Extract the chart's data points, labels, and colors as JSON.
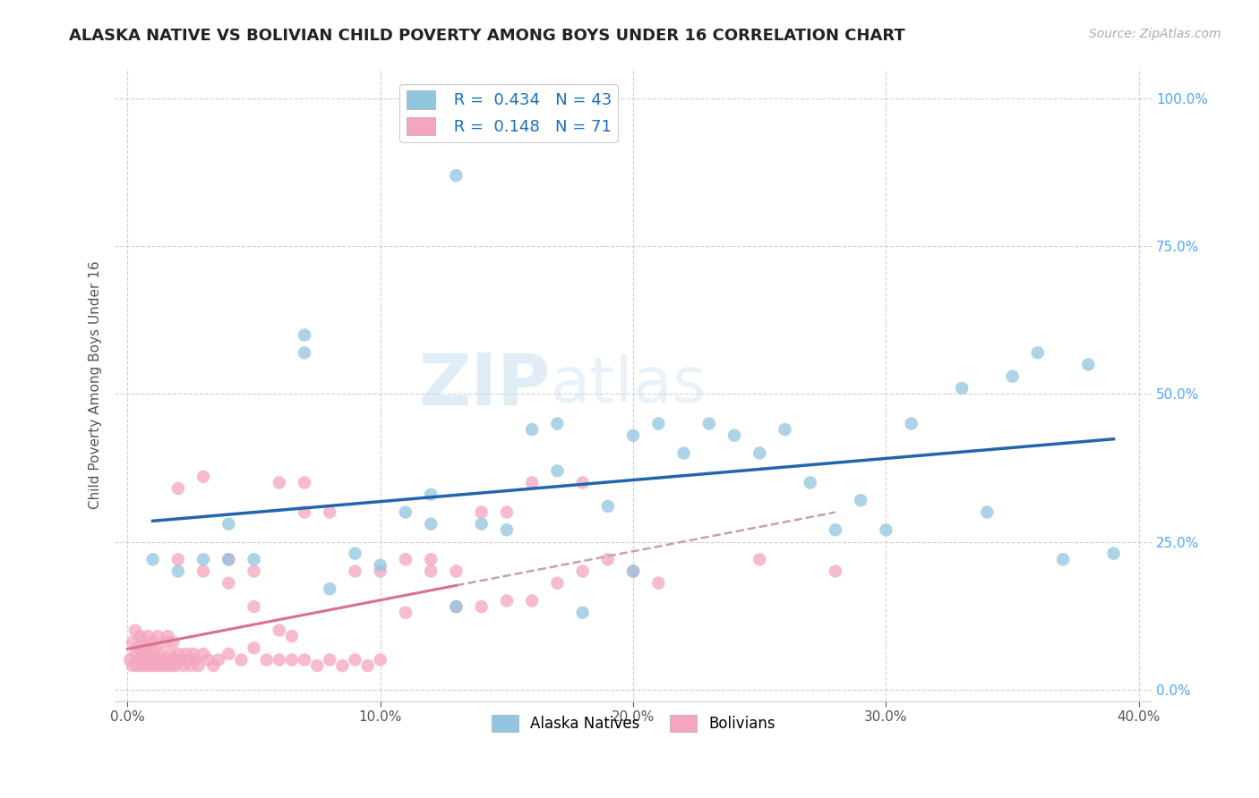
{
  "title": "ALASKA NATIVE VS BOLIVIAN CHILD POVERTY AMONG BOYS UNDER 16 CORRELATION CHART",
  "source": "Source: ZipAtlas.com",
  "ylabel": "Child Poverty Among Boys Under 16",
  "xlabel_ticks": [
    "0.0%",
    "10.0%",
    "20.0%",
    "30.0%",
    "40.0%"
  ],
  "xlabel_vals": [
    0.0,
    0.1,
    0.2,
    0.3,
    0.4
  ],
  "ylabel_ticks": [
    "0.0%",
    "25.0%",
    "50.0%",
    "75.0%",
    "100.0%"
  ],
  "ylabel_vals": [
    0.0,
    0.25,
    0.5,
    0.75,
    1.0
  ],
  "xlim": [
    -0.005,
    0.405
  ],
  "ylim": [
    -0.02,
    1.05
  ],
  "legend_blue_r": "0.434",
  "legend_blue_n": "43",
  "legend_pink_r": "0.148",
  "legend_pink_n": "71",
  "blue_color": "#92c5de",
  "pink_color": "#f4a6be",
  "blue_line_color": "#2166ac",
  "pink_line_color": "#d9728e",
  "watermark_zip": "ZIP",
  "watermark_atlas": "atlas",
  "background_color": "#ffffff",
  "grid_color": "#cccccc",
  "blue_scatter_x": [
    0.13,
    0.04,
    0.04,
    0.07,
    0.07,
    0.09,
    0.1,
    0.11,
    0.12,
    0.12,
    0.14,
    0.15,
    0.16,
    0.17,
    0.17,
    0.19,
    0.2,
    0.2,
    0.21,
    0.22,
    0.23,
    0.24,
    0.25,
    0.26,
    0.27,
    0.28,
    0.29,
    0.3,
    0.31,
    0.33,
    0.34,
    0.35,
    0.36,
    0.37,
    0.38,
    0.39,
    0.01,
    0.02,
    0.03,
    0.05,
    0.08,
    0.13,
    0.18
  ],
  "blue_scatter_y": [
    0.87,
    0.28,
    0.22,
    0.6,
    0.57,
    0.23,
    0.21,
    0.3,
    0.33,
    0.28,
    0.28,
    0.27,
    0.44,
    0.45,
    0.37,
    0.31,
    0.2,
    0.43,
    0.45,
    0.4,
    0.45,
    0.43,
    0.4,
    0.44,
    0.35,
    0.27,
    0.32,
    0.27,
    0.45,
    0.51,
    0.3,
    0.53,
    0.57,
    0.22,
    0.55,
    0.23,
    0.22,
    0.2,
    0.22,
    0.22,
    0.17,
    0.14,
    0.13
  ],
  "pink_scatter_x": [
    0.001,
    0.002,
    0.002,
    0.003,
    0.003,
    0.004,
    0.004,
    0.005,
    0.005,
    0.006,
    0.006,
    0.006,
    0.007,
    0.007,
    0.008,
    0.008,
    0.009,
    0.009,
    0.01,
    0.01,
    0.011,
    0.011,
    0.012,
    0.012,
    0.013,
    0.013,
    0.014,
    0.015,
    0.015,
    0.016,
    0.016,
    0.017,
    0.017,
    0.018,
    0.018,
    0.019,
    0.02,
    0.021,
    0.022,
    0.023,
    0.024,
    0.025,
    0.026,
    0.027,
    0.028,
    0.03,
    0.032,
    0.034,
    0.036,
    0.04,
    0.045,
    0.05,
    0.055,
    0.06,
    0.06,
    0.065,
    0.065,
    0.07,
    0.075,
    0.08,
    0.085,
    0.09,
    0.095,
    0.1,
    0.11,
    0.12,
    0.13,
    0.14,
    0.15,
    0.16,
    0.18
  ],
  "pink_scatter_y": [
    0.05,
    0.04,
    0.08,
    0.06,
    0.1,
    0.04,
    0.07,
    0.05,
    0.09,
    0.04,
    0.06,
    0.08,
    0.04,
    0.07,
    0.05,
    0.09,
    0.04,
    0.06,
    0.05,
    0.08,
    0.04,
    0.07,
    0.05,
    0.09,
    0.04,
    0.06,
    0.05,
    0.04,
    0.08,
    0.05,
    0.09,
    0.04,
    0.06,
    0.05,
    0.08,
    0.04,
    0.06,
    0.05,
    0.04,
    0.06,
    0.05,
    0.04,
    0.06,
    0.05,
    0.04,
    0.06,
    0.05,
    0.04,
    0.05,
    0.06,
    0.05,
    0.07,
    0.05,
    0.05,
    0.1,
    0.05,
    0.09,
    0.05,
    0.04,
    0.05,
    0.04,
    0.05,
    0.04,
    0.05,
    0.13,
    0.22,
    0.2,
    0.14,
    0.3,
    0.15,
    0.35
  ],
  "pink_scatter_x2": [
    0.02,
    0.02,
    0.03,
    0.03,
    0.04,
    0.04,
    0.05,
    0.05,
    0.06,
    0.07,
    0.07,
    0.08,
    0.09,
    0.1,
    0.11,
    0.12,
    0.13,
    0.14,
    0.15,
    0.16,
    0.17,
    0.18,
    0.19,
    0.2,
    0.21,
    0.25,
    0.28
  ],
  "pink_scatter_y2": [
    0.34,
    0.22,
    0.36,
    0.2,
    0.22,
    0.18,
    0.2,
    0.14,
    0.35,
    0.35,
    0.3,
    0.3,
    0.2,
    0.2,
    0.22,
    0.2,
    0.14,
    0.3,
    0.15,
    0.35,
    0.18,
    0.2,
    0.22,
    0.2,
    0.18,
    0.22,
    0.2
  ]
}
